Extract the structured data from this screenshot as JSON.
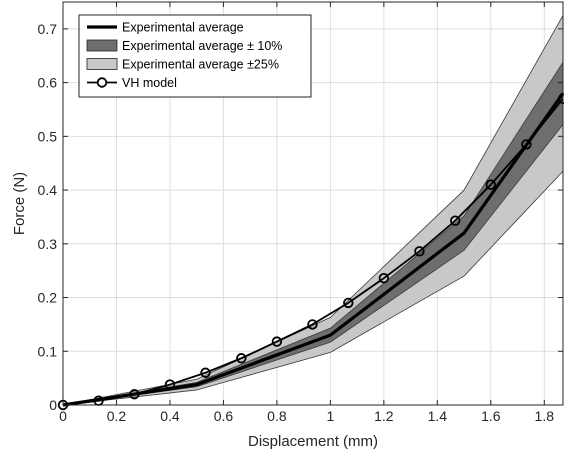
{
  "chart_data": {
    "type": "line",
    "xlabel": "Displacement  (mm)",
    "ylabel": "Force (N)",
    "xlim": [
      0,
      1.87
    ],
    "ylim": [
      0,
      0.75
    ],
    "xticks": [
      0,
      0.2,
      0.4,
      0.6,
      0.8,
      1,
      1.2,
      1.4,
      1.6,
      1.8
    ],
    "xtick_labels": [
      "0",
      "0.2",
      "0.4",
      "0.6",
      "0.8",
      "1",
      "1.2",
      "1.4",
      "1.6",
      "1.8"
    ],
    "yticks": [
      0,
      0.1,
      0.2,
      0.3,
      0.4,
      0.5,
      0.6,
      0.7
    ],
    "ytick_labels": [
      "0",
      "0.1",
      "0.2",
      "0.3",
      "0.4",
      "0.5",
      "0.6",
      "0.7"
    ],
    "grid": true,
    "legend_position": "top-left",
    "colors": {
      "band25": "#c8c8c8",
      "band10": "#6e6e6e",
      "line": "#000000",
      "grid": "#dedede"
    },
    "series": [
      {
        "name": "Experimental average",
        "kind": "line",
        "x": [
          0,
          0.5,
          1.0,
          1.5,
          1.87
        ],
        "y": [
          0,
          0.038,
          0.13,
          0.32,
          0.58
        ]
      },
      {
        "name": "Experimental average ± 10%",
        "kind": "band",
        "x": [
          0,
          0.5,
          1.0,
          1.5,
          1.87
        ],
        "lower": [
          0,
          0.034,
          0.117,
          0.288,
          0.522
        ],
        "upper": [
          0,
          0.042,
          0.143,
          0.352,
          0.638
        ]
      },
      {
        "name": "Experimental average ±25%",
        "kind": "band",
        "x": [
          0,
          0.5,
          1.0,
          1.5,
          1.87
        ],
        "lower": [
          0,
          0.028,
          0.098,
          0.24,
          0.435
        ],
        "upper": [
          0,
          0.048,
          0.163,
          0.4,
          0.725
        ]
      },
      {
        "name": "VH model",
        "kind": "line-marker",
        "x": [
          0,
          0.133,
          0.267,
          0.4,
          0.533,
          0.667,
          0.8,
          0.933,
          1.067,
          1.2,
          1.333,
          1.467,
          1.6,
          1.733,
          1.87
        ],
        "y": [
          0,
          0.008,
          0.02,
          0.038,
          0.06,
          0.087,
          0.118,
          0.15,
          0.19,
          0.236,
          0.286,
          0.343,
          0.41,
          0.485,
          0.57
        ]
      }
    ]
  }
}
